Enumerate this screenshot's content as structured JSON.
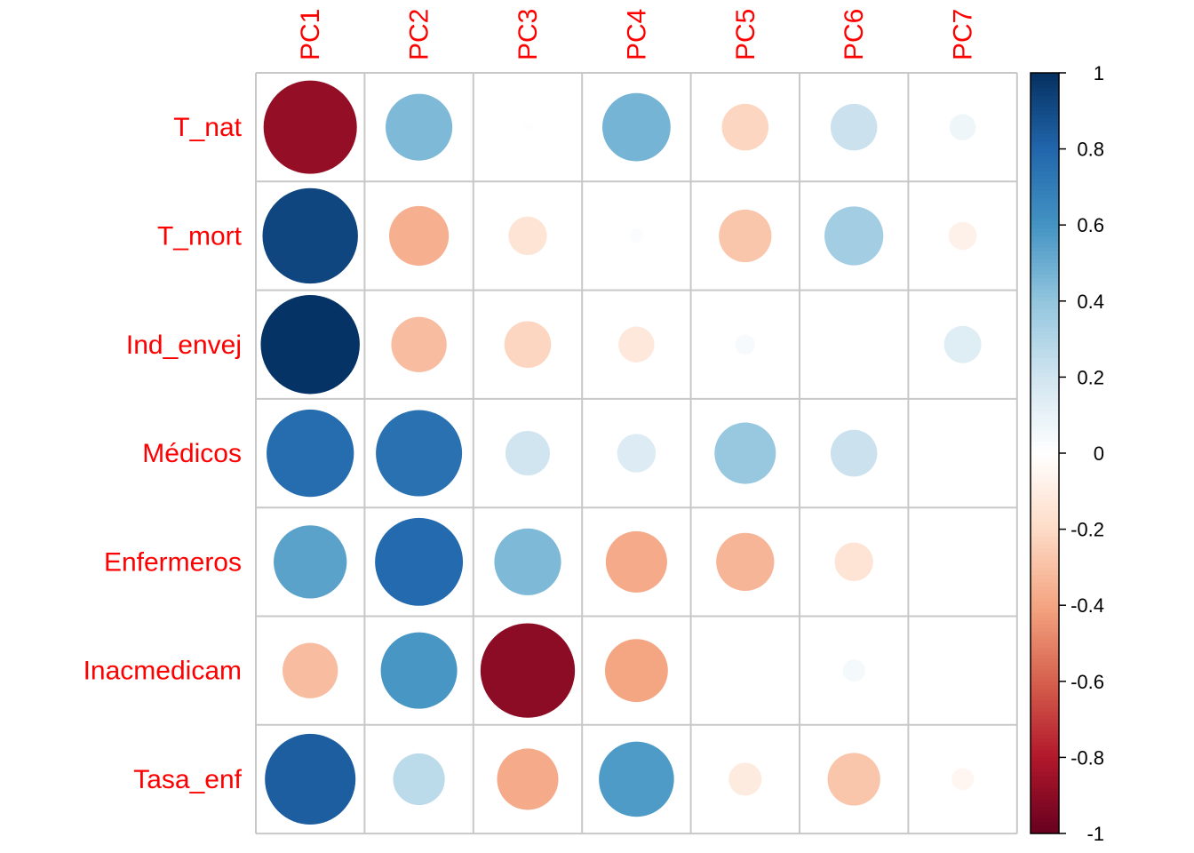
{
  "chart_data": {
    "type": "heatmap",
    "rows": [
      "T_nat",
      "T_mort",
      "Ind_envej",
      "Médicos",
      "Enfermeros",
      "Inacmedicam",
      "Tasa_enf"
    ],
    "columns": [
      "PC1",
      "PC2",
      "PC3",
      "PC4",
      "PC5",
      "PC6",
      "PC7"
    ],
    "values": [
      [
        -0.88,
        0.45,
        0.01,
        0.47,
        -0.22,
        0.22,
        0.07
      ],
      [
        0.92,
        -0.36,
        -0.15,
        0.02,
        -0.28,
        0.35,
        -0.08
      ],
      [
        0.99,
        -0.31,
        -0.22,
        -0.13,
        0.04,
        0.0,
        0.14
      ],
      [
        0.77,
        0.75,
        0.2,
        0.15,
        0.38,
        0.22,
        0.0
      ],
      [
        0.54,
        0.78,
        0.45,
        -0.38,
        -0.34,
        -0.15,
        0.0
      ],
      [
        -0.31,
        0.59,
        -0.9,
        -0.4,
        0.0,
        0.05,
        0.0
      ],
      [
        0.83,
        0.27,
        -0.38,
        0.57,
        -0.11,
        -0.28,
        -0.05
      ]
    ],
    "colorbar": {
      "range": [
        -1,
        1
      ],
      "ticks": [
        "1",
        "0.8",
        "0.6",
        "0.4",
        "0.2",
        "0",
        "-0.2",
        "-0.4",
        "-0.6",
        "-0.8",
        "-1"
      ],
      "tick_values": [
        1,
        0.8,
        0.6,
        0.4,
        0.2,
        0,
        -0.2,
        -0.4,
        -0.6,
        -0.8,
        -1
      ],
      "palette": [
        "#67001F",
        "#B2182B",
        "#D6604D",
        "#F4A582",
        "#FDDBC7",
        "#FFFFFF",
        "#D1E5F0",
        "#92C5DE",
        "#4393C3",
        "#2166AC",
        "#053061"
      ]
    },
    "grid": true
  }
}
